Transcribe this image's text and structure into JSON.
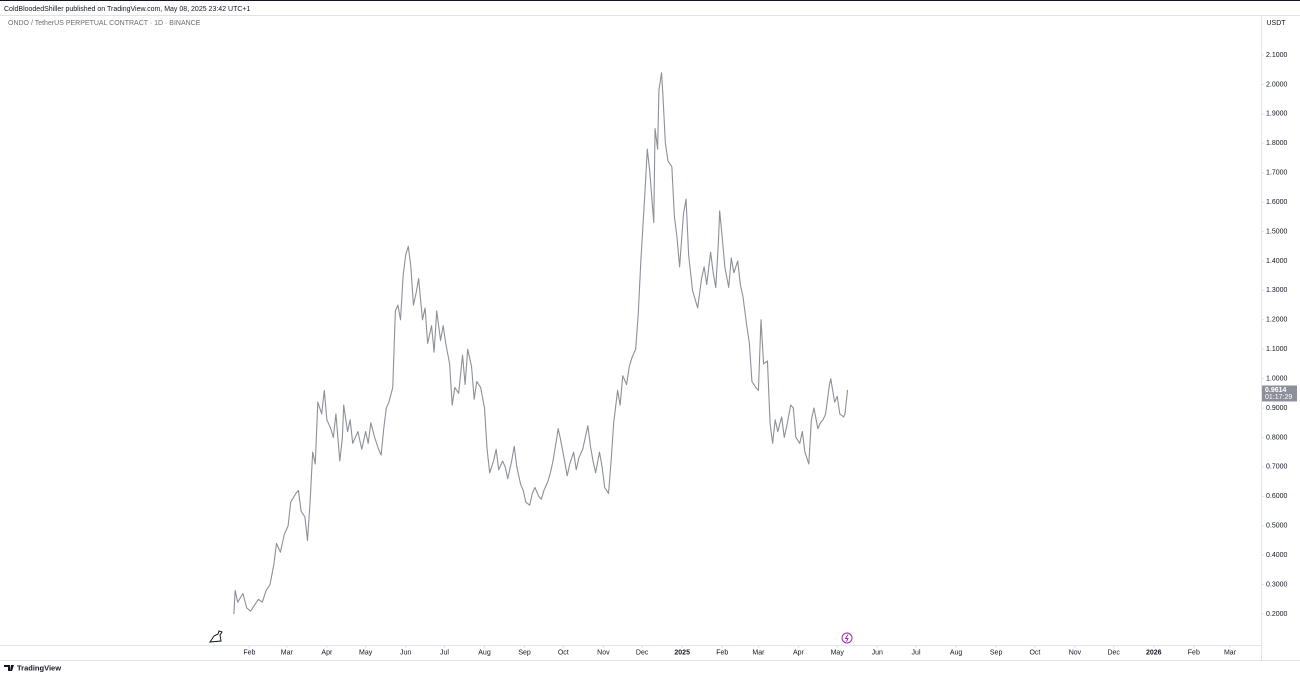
{
  "header": {
    "published": "ColdBloodedShiller published on TradingView.com, May 08, 2025 23:42 UTC+1"
  },
  "footer": {
    "brand": "TradingView"
  },
  "chart_data": {
    "type": "line",
    "title": "ONDO / TetherUS PERPETUAL CONTRACT · 1D · BINANCE",
    "y_unit": "USDT",
    "color": "#8d9099",
    "x": [
      19,
      20,
      22,
      26,
      29,
      32,
      35,
      38,
      41,
      44,
      47,
      50,
      52,
      55,
      58,
      61,
      63,
      67,
      69,
      71,
      74,
      76,
      78,
      80,
      82,
      84,
      87,
      89,
      91,
      94,
      96,
      98,
      101,
      103,
      104,
      107,
      109,
      111,
      115,
      118,
      121,
      123,
      125,
      128,
      131,
      133,
      135,
      137,
      139,
      142,
      144,
      146,
      148,
      150,
      152,
      154,
      156,
      158,
      160,
      162,
      165,
      167,
      169,
      172,
      174,
      176,
      179,
      181,
      183,
      186,
      188,
      190,
      193,
      196,
      198,
      200,
      203,
      205,
      207,
      210,
      213,
      215,
      217,
      220,
      222,
      224,
      227,
      229,
      231,
      234,
      236,
      238,
      241,
      243,
      245,
      248,
      250,
      252,
      255,
      257,
      259,
      262,
      264,
      266,
      269,
      270,
      272,
      275,
      277,
      279,
      282,
      284,
      286,
      289,
      291,
      293,
      295,
      297,
      299,
      302,
      304,
      306,
      309,
      311,
      313,
      316,
      318,
      320,
      323,
      325,
      327,
      330,
      332,
      334,
      337,
      339,
      341,
      344,
      345,
      347,
      348,
      350,
      351,
      353,
      355,
      358,
      360,
      362,
      364,
      367,
      369,
      371,
      374,
      376,
      378,
      381,
      383,
      385,
      388,
      390,
      392,
      394,
      395,
      397,
      399,
      402,
      404,
      406,
      409,
      411,
      413,
      416,
      418,
      420,
      423,
      425,
      427,
      429,
      432,
      434,
      436,
      438,
      440,
      443,
      445,
      447,
      450,
      452,
      454,
      457,
      459,
      461,
      464,
      466,
      468,
      471,
      473,
      475,
      477,
      480,
      481,
      484,
      486,
      488,
      491,
      492,
      494
    ],
    "values": [
      0.2,
      0.28,
      0.24,
      0.27,
      0.22,
      0.21,
      0.23,
      0.25,
      0.24,
      0.28,
      0.3,
      0.37,
      0.44,
      0.41,
      0.47,
      0.5,
      0.58,
      0.61,
      0.62,
      0.55,
      0.53,
      0.45,
      0.58,
      0.75,
      0.71,
      0.92,
      0.88,
      0.96,
      0.86,
      0.83,
      0.8,
      0.88,
      0.72,
      0.8,
      0.91,
      0.82,
      0.86,
      0.78,
      0.82,
      0.76,
      0.82,
      0.78,
      0.85,
      0.8,
      0.76,
      0.74,
      0.83,
      0.9,
      0.92,
      0.97,
      1.23,
      1.25,
      1.2,
      1.35,
      1.42,
      1.45,
      1.38,
      1.25,
      1.29,
      1.34,
      1.2,
      1.24,
      1.12,
      1.18,
      1.09,
      1.23,
      1.13,
      1.18,
      1.12,
      1.05,
      0.91,
      0.97,
      0.95,
      1.08,
      0.98,
      1.1,
      1.04,
      0.93,
      0.99,
      0.97,
      0.9,
      0.76,
      0.68,
      0.72,
      0.76,
      0.69,
      0.72,
      0.7,
      0.66,
      0.72,
      0.77,
      0.7,
      0.64,
      0.62,
      0.58,
      0.57,
      0.61,
      0.63,
      0.6,
      0.59,
      0.62,
      0.65,
      0.68,
      0.72,
      0.8,
      0.83,
      0.79,
      0.72,
      0.67,
      0.71,
      0.75,
      0.69,
      0.73,
      0.76,
      0.8,
      0.84,
      0.77,
      0.72,
      0.68,
      0.75,
      0.7,
      0.63,
      0.61,
      0.72,
      0.85,
      0.96,
      0.91,
      1.01,
      0.98,
      1.04,
      1.07,
      1.1,
      1.22,
      1.4,
      1.62,
      1.78,
      1.7,
      1.53,
      1.85,
      1.78,
      1.98,
      2.04,
      1.97,
      1.8,
      1.74,
      1.72,
      1.55,
      1.48,
      1.38,
      1.56,
      1.61,
      1.42,
      1.3,
      1.27,
      1.24,
      1.34,
      1.38,
      1.32,
      1.43,
      1.36,
      1.31,
      1.46,
      1.57,
      1.48,
      1.38,
      1.31,
      1.41,
      1.36,
      1.4,
      1.32,
      1.28,
      1.18,
      1.12,
      0.99,
      0.97,
      0.96,
      1.2,
      1.05,
      1.06,
      0.85,
      0.78,
      0.86,
      0.82,
      0.87,
      0.8,
      0.84,
      0.91,
      0.9,
      0.8,
      0.78,
      0.82,
      0.75,
      0.71,
      0.86,
      0.9,
      0.83,
      0.85,
      0.86,
      0.88,
      0.98,
      1.0,
      0.92,
      0.94,
      0.88,
      0.87,
      0.88,
      0.9614
    ],
    "price_tag": {
      "value": 0.9614,
      "label": "0.9614",
      "countdown": "01:17:29"
    },
    "xlim": [
      -162,
      814
    ],
    "xticks": [
      {
        "value": 31,
        "label": "Feb"
      },
      {
        "value": 60,
        "label": "Mar"
      },
      {
        "value": 91,
        "label": "Apr"
      },
      {
        "value": 121,
        "label": "May"
      },
      {
        "value": 152,
        "label": "Jun"
      },
      {
        "value": 182,
        "label": "Jul"
      },
      {
        "value": 213,
        "label": "Aug"
      },
      {
        "value": 244,
        "label": "Sep"
      },
      {
        "value": 274,
        "label": "Oct"
      },
      {
        "value": 305,
        "label": "Nov"
      },
      {
        "value": 335,
        "label": "Dec"
      },
      {
        "value": 366,
        "label": "2025"
      },
      {
        "value": 397,
        "label": "Feb"
      },
      {
        "value": 425,
        "label": "Mar"
      },
      {
        "value": 456,
        "label": "Apr"
      },
      {
        "value": 486,
        "label": "May"
      },
      {
        "value": 517,
        "label": "Jun"
      },
      {
        "value": 547,
        "label": "Jul"
      },
      {
        "value": 578,
        "label": "Aug"
      },
      {
        "value": 609,
        "label": "Sep"
      },
      {
        "value": 639,
        "label": "Oct"
      },
      {
        "value": 670,
        "label": "Nov"
      },
      {
        "value": 700,
        "label": "Dec"
      },
      {
        "value": 731,
        "label": "2026"
      },
      {
        "value": 762,
        "label": "Feb"
      },
      {
        "value": 790,
        "label": "Mar"
      }
    ],
    "ylim": [
      0.0946,
      2.236
    ],
    "yticks": [
      {
        "value": 0.2,
        "label": "0.2000"
      },
      {
        "value": 0.3,
        "label": "0.3000"
      },
      {
        "value": 0.4,
        "label": "0.4000"
      },
      {
        "value": 0.5,
        "label": "0.5000"
      },
      {
        "value": 0.6,
        "label": "0.6000"
      },
      {
        "value": 0.7,
        "label": "0.7000"
      },
      {
        "value": 0.8,
        "label": "0.8000"
      },
      {
        "value": 0.9,
        "label": "0.9000"
      },
      {
        "value": 1.0,
        "label": "1.0000"
      },
      {
        "value": 1.1,
        "label": "1.1000"
      },
      {
        "value": 1.2,
        "label": "1.2000"
      },
      {
        "value": 1.3,
        "label": "1.3000"
      },
      {
        "value": 1.4,
        "label": "1.4000"
      },
      {
        "value": 1.5,
        "label": "1.5000"
      },
      {
        "value": 1.6,
        "label": "1.6000"
      },
      {
        "value": 1.7,
        "label": "1.7000"
      },
      {
        "value": 1.8,
        "label": "1.8000"
      },
      {
        "value": 1.9,
        "label": "1.9000"
      },
      {
        "value": 2.0,
        "label": "2.0000"
      },
      {
        "value": 2.1,
        "label": "2.1000"
      }
    ]
  }
}
